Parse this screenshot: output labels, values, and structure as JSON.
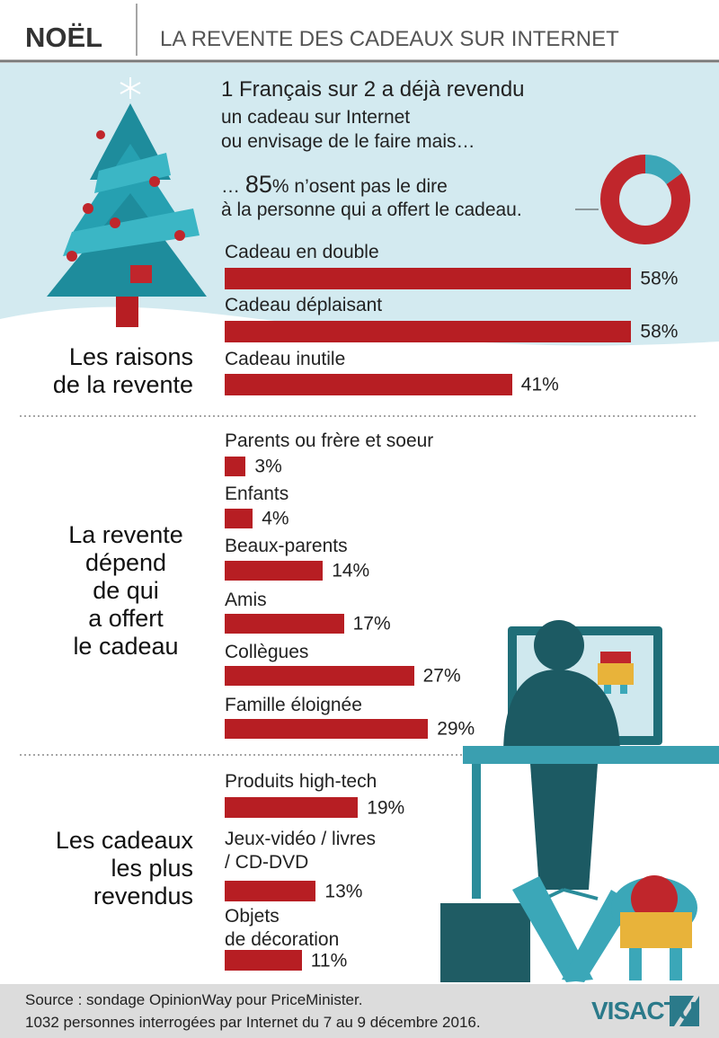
{
  "header": {
    "title": "NOËL",
    "subtitle": "LA REVENTE DES CADEAUX SUR INTERNET"
  },
  "intro": {
    "lines": [
      "1 Français sur 2 a déjà revendu",
      "un cadeau sur Internet",
      "ou envisage de le faire mais…"
    ],
    "pie_prefix": "…",
    "pie_suffix": "% n’osent pas le dire",
    "pie_line2": "à la personne qui a offert le cadeau."
  },
  "chart_data": [
    {
      "type": "pie",
      "values": [
        85,
        15
      ],
      "colors": [
        "#c0262c",
        "#3ba7b8"
      ]
    },
    {
      "type": "bar",
      "title": "Les raisons\nde la revente",
      "categories": [
        "Cadeau en double",
        "Cadeau déplaisant",
        "Cadeau inutile"
      ],
      "values": [
        58,
        58,
        41
      ],
      "value_labels": [
        "58%",
        "58%",
        "41%"
      ],
      "color": "#b71e23"
    },
    {
      "type": "bar",
      "title": "La revente\ndépend\nde qui\na offert\nle cadeau",
      "categories": [
        "Parents ou frère et soeur",
        "Enfants",
        "Beaux-parents",
        "Amis",
        "Collègues",
        "Famille éloignée"
      ],
      "values": [
        3,
        4,
        14,
        17,
        27,
        29
      ],
      "value_labels": [
        "3%",
        "4%",
        "14%",
        "17%",
        "27%",
        "29%"
      ],
      "color": "#b71e23"
    },
    {
      "type": "bar",
      "title": "Les cadeaux\nles plus\nrevendus",
      "categories": [
        "Produits high-tech",
        "Jeux-vidéo / livres\n/ CD-DVD",
        "Objets\nde décoration"
      ],
      "values": [
        19,
        13,
        11
      ],
      "value_labels": [
        "19%",
        "13%",
        "11%"
      ],
      "color": "#b71e23"
    }
  ],
  "source": {
    "lines": [
      "Source : sondage OpinionWay pour PriceMinister.",
      "1032 personnes interrogées par Internet du 7 au 9 décembre 2016."
    ]
  },
  "logo": "VISACTU"
}
